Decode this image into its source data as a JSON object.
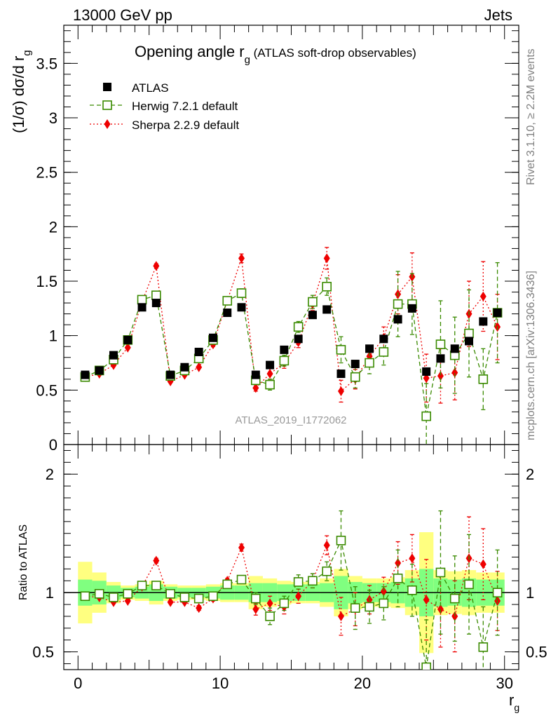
{
  "header": {
    "left": "13000 GeV pp",
    "right": "Jets"
  },
  "side_labels": {
    "rivet": "Rivet 3.1.10, ≥ 2.2M events",
    "mcplots": "mcplots.cern.ch [arXiv:1306.3436]"
  },
  "watermark": "ATLAS_2019_I1772062",
  "colors": {
    "atlas": "#000000",
    "herwig": "#3a8a00",
    "sherpa": "#ee0000",
    "band_outer": "#ffff80",
    "band_inner": "#80ff80"
  },
  "chart_data": [
    {
      "type": "scatter",
      "panel": "main",
      "title": "Opening angle r",
      "title_sub": "g",
      "title_suffix": " (ATLAS soft-drop observables)",
      "ylabel": "(1/σ) dσ/d r",
      "ylabel_sub": "g",
      "xlim": [
        -1,
        31
      ],
      "ylim": [
        0,
        3.85
      ],
      "yticks": [
        "0",
        "0.5",
        "1",
        "1.5",
        "2",
        "2.5",
        "3",
        "3.5"
      ],
      "ytick_values": [
        0,
        0.5,
        1,
        1.5,
        2,
        2.5,
        3,
        3.5
      ],
      "x": [
        0.5,
        1.5,
        2.5,
        3.5,
        4.5,
        5.5,
        6.5,
        7.5,
        8.5,
        9.5,
        10.5,
        11.5,
        12.5,
        13.5,
        14.5,
        15.5,
        16.5,
        17.5,
        18.5,
        19.5,
        20.5,
        21.5,
        22.5,
        23.5,
        24.5,
        25.5,
        26.5,
        27.5,
        28.5,
        29.5
      ],
      "legend": [
        {
          "name": "ATLAS",
          "color": "#000000",
          "marker": "square-filled"
        },
        {
          "name": "Herwig 7.2.1 default",
          "color": "#3a8a00",
          "marker": "square-open",
          "dash": "6,4"
        },
        {
          "name": "Sherpa 2.2.9 default",
          "color": "#ee0000",
          "marker": "diamond",
          "dash": "2,3"
        }
      ],
      "series": [
        {
          "name": "ATLAS",
          "values": [
            0.64,
            0.68,
            0.82,
            0.96,
            1.26,
            1.3,
            0.64,
            0.71,
            0.85,
            0.98,
            1.21,
            1.26,
            0.64,
            0.73,
            0.87,
            0.97,
            1.19,
            1.24,
            0.65,
            0.74,
            0.88,
            0.97,
            1.15,
            1.25,
            0.67,
            0.79,
            0.88,
            0.95,
            1.13,
            1.21
          ]
        },
        {
          "name": "Herwig 7.2.1 default",
          "values": [
            0.62,
            0.68,
            0.78,
            0.96,
            1.33,
            1.37,
            0.63,
            0.68,
            0.79,
            0.96,
            1.32,
            1.39,
            0.59,
            0.55,
            0.77,
            1.08,
            1.31,
            1.45,
            0.87,
            0.62,
            0.75,
            0.85,
            1.29,
            1.29,
            0.26,
            0.92,
            0.82,
            1.02,
            0.6,
            1.21
          ],
          "err": [
            0.01,
            0.01,
            0.01,
            0.01,
            0.02,
            0.02,
            0.01,
            0.01,
            0.01,
            0.02,
            0.02,
            0.04,
            0.03,
            0.05,
            0.05,
            0.05,
            0.06,
            0.08,
            0.12,
            0.1,
            0.1,
            0.12,
            0.3,
            0.28,
            0.3,
            0.4,
            0.35,
            0.4,
            0.28,
            0.46
          ]
        },
        {
          "name": "Sherpa 2.2.9 default",
          "values": [
            0.62,
            0.65,
            0.73,
            0.89,
            1.31,
            1.64,
            0.58,
            0.64,
            0.71,
            0.92,
            1.32,
            1.71,
            0.52,
            0.65,
            0.75,
            0.94,
            1.29,
            1.71,
            0.49,
            0.6,
            0.81,
            0.98,
            1.38,
            1.54,
            0.61,
            0.63,
            0.66,
            1.2,
            1.36,
            1.08
          ],
          "err": [
            0.01,
            0.01,
            0.01,
            0.01,
            0.02,
            0.02,
            0.01,
            0.01,
            0.01,
            0.02,
            0.02,
            0.04,
            0.03,
            0.05,
            0.05,
            0.05,
            0.06,
            0.1,
            0.1,
            0.09,
            0.09,
            0.1,
            0.18,
            0.22,
            0.22,
            0.25,
            0.25,
            0.3,
            0.32,
            0.3
          ]
        }
      ]
    },
    {
      "type": "scatter",
      "panel": "ratio",
      "ylabel": "Ratio to ATLAS",
      "xlabel": "r",
      "xlabel_sub": "g",
      "xlim": [
        -1,
        31
      ],
      "ylim": [
        0.35,
        2.25
      ],
      "xticks": [
        "0",
        "10",
        "20",
        "30"
      ],
      "xtick_values": [
        0,
        10,
        20,
        30
      ],
      "yticks": [
        "0.5",
        "1",
        "2"
      ],
      "ytick_values": [
        0.5,
        1,
        2
      ],
      "x": [
        0.5,
        1.5,
        2.5,
        3.5,
        4.5,
        5.5,
        6.5,
        7.5,
        8.5,
        9.5,
        10.5,
        11.5,
        12.5,
        13.5,
        14.5,
        15.5,
        16.5,
        17.5,
        18.5,
        19.5,
        20.5,
        21.5,
        22.5,
        23.5,
        24.5,
        25.5,
        26.5,
        27.5,
        28.5,
        29.5
      ],
      "band_outer": [
        0.26,
        0.17,
        0.09,
        0.06,
        0.07,
        0.1,
        0.07,
        0.06,
        0.06,
        0.07,
        0.08,
        0.08,
        0.14,
        0.12,
        0.1,
        0.09,
        0.09,
        0.12,
        0.2,
        0.14,
        0.12,
        0.12,
        0.13,
        0.19,
        0.51,
        0.19,
        0.18,
        0.19,
        0.17,
        0.17
      ],
      "band_inner": [
        0.11,
        0.1,
        0.06,
        0.04,
        0.05,
        0.07,
        0.05,
        0.04,
        0.04,
        0.05,
        0.06,
        0.06,
        0.08,
        0.08,
        0.07,
        0.07,
        0.07,
        0.08,
        0.14,
        0.09,
        0.08,
        0.08,
        0.09,
        0.12,
        0.2,
        0.12,
        0.11,
        0.12,
        0.11,
        0.11
      ],
      "series": [
        {
          "name": "Herwig 7.2.1 default",
          "values": [
            0.97,
            0.99,
            0.96,
            0.99,
            1.06,
            1.06,
            0.99,
            0.96,
            0.95,
            0.97,
            1.07,
            1.11,
            0.95,
            0.8,
            0.91,
            1.09,
            1.1,
            1.18,
            1.44,
            0.87,
            0.88,
            0.91,
            1.12,
            1.02,
            0.37,
            1.17,
            0.95,
            1.07,
            0.54,
            1.0
          ],
          "err": [
            0.01,
            0.01,
            0.01,
            0.01,
            0.02,
            0.02,
            0.01,
            0.01,
            0.02,
            0.02,
            0.02,
            0.03,
            0.05,
            0.07,
            0.06,
            0.06,
            0.06,
            0.08,
            0.25,
            0.18,
            0.14,
            0.14,
            0.24,
            0.22,
            0.4,
            0.52,
            0.36,
            0.42,
            0.34,
            0.36
          ]
        },
        {
          "name": "Sherpa 2.2.9 default",
          "values": [
            0.97,
            0.96,
            0.92,
            0.93,
            1.05,
            1.27,
            0.92,
            0.92,
            0.87,
            0.95,
            1.1,
            1.38,
            0.86,
            0.91,
            0.88,
            0.97,
            1.1,
            1.4,
            0.8,
            0.86,
            0.94,
            1.01,
            1.25,
            1.29,
            0.94,
            0.86,
            0.8,
            1.29,
            1.24,
            0.93
          ],
          "err": [
            0.01,
            0.01,
            0.01,
            0.01,
            0.02,
            0.02,
            0.01,
            0.01,
            0.02,
            0.02,
            0.02,
            0.03,
            0.05,
            0.06,
            0.06,
            0.06,
            0.06,
            0.08,
            0.16,
            0.14,
            0.12,
            0.12,
            0.18,
            0.2,
            0.34,
            0.32,
            0.3,
            0.35,
            0.3,
            0.25
          ]
        }
      ]
    }
  ]
}
